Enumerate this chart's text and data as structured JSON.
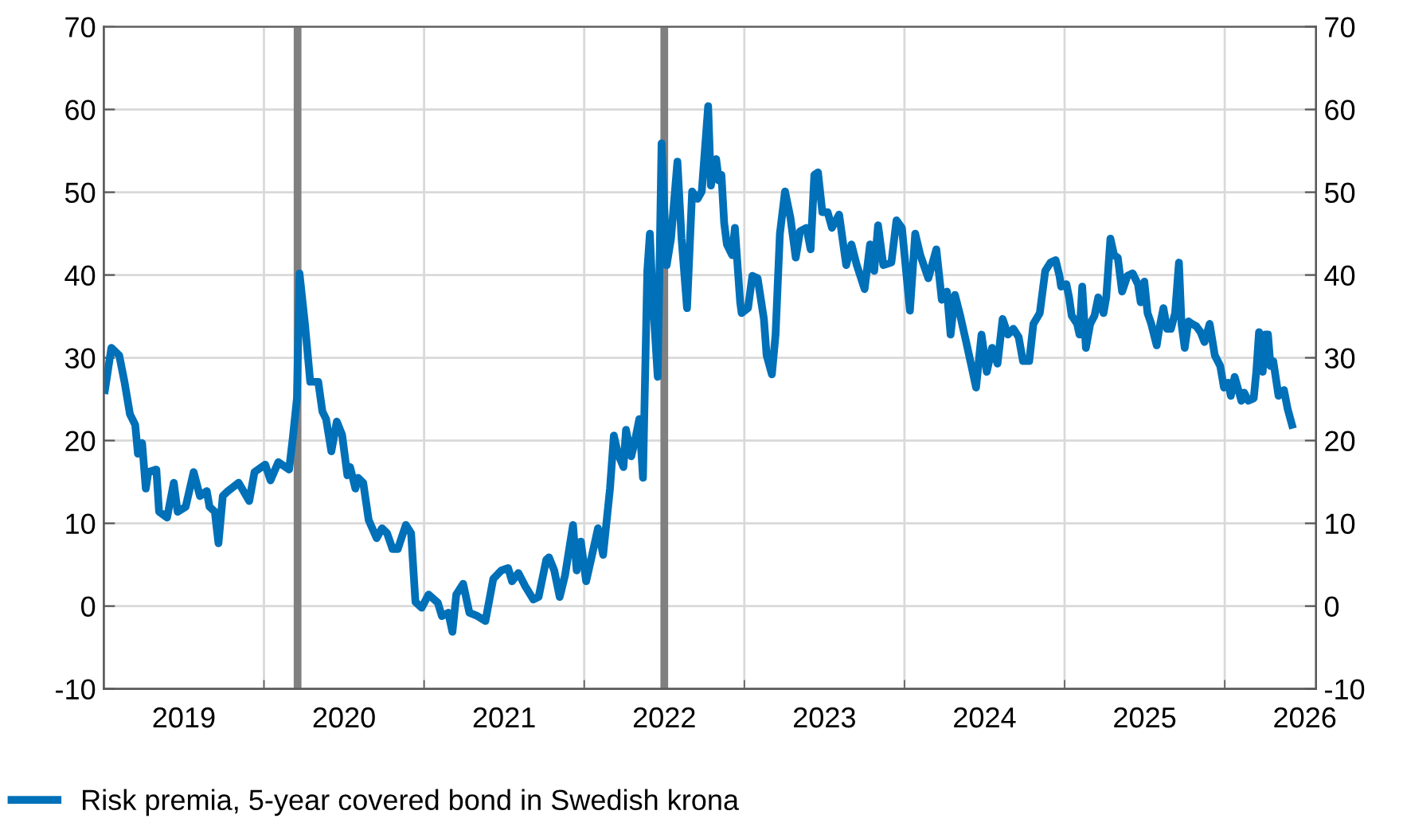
{
  "chart_data": {
    "type": "line",
    "x": [
      2019.007,
      2019.047,
      2019.096,
      2019.129,
      2019.163,
      2019.196,
      2019.213,
      2019.239,
      2019.262,
      2019.278,
      2019.328,
      2019.345,
      2019.395,
      2019.437,
      2019.461,
      2019.511,
      2019.561,
      2019.6,
      2019.643,
      2019.66,
      2019.693,
      2019.716,
      2019.743,
      2019.775,
      2019.842,
      2019.908,
      2019.941,
      2020.008,
      2020.041,
      2020.09,
      2020.157,
      2020.18,
      2020.206,
      2020.222,
      2020.256,
      2020.289,
      2020.339,
      2020.365,
      2020.388,
      2020.421,
      2020.455,
      2020.488,
      2020.521,
      2020.538,
      2020.571,
      2020.588,
      2020.62,
      2020.654,
      2020.704,
      2020.737,
      2020.769,
      2020.803,
      2020.836,
      2020.886,
      2020.919,
      2020.946,
      2020.985,
      2021.028,
      2021.086,
      2021.111,
      2021.151,
      2021.177,
      2021.201,
      2021.244,
      2021.283,
      2021.333,
      2021.383,
      2021.432,
      2021.482,
      2021.525,
      2021.549,
      2021.589,
      2021.632,
      2021.682,
      2021.715,
      2021.763,
      2021.78,
      2021.813,
      2021.847,
      2021.88,
      2021.93,
      2021.953,
      2021.979,
      2022.012,
      2022.046,
      2022.086,
      2022.118,
      2022.161,
      2022.185,
      2022.211,
      2022.245,
      2022.261,
      2022.294,
      2022.317,
      2022.344,
      2022.367,
      2022.394,
      2022.41,
      2022.426,
      2022.459,
      2022.483,
      2022.515,
      2022.542,
      2022.582,
      2022.608,
      2022.642,
      2022.674,
      2022.708,
      2022.734,
      2022.774,
      2022.791,
      2022.824,
      2022.841,
      2022.857,
      2022.874,
      2022.891,
      2022.924,
      2022.941,
      2022.974,
      2022.983,
      2023.023,
      2023.05,
      2023.083,
      2023.122,
      2023.139,
      2023.172,
      2023.195,
      2023.222,
      2023.254,
      2023.288,
      2023.321,
      2023.348,
      2023.388,
      2023.414,
      2023.437,
      2023.46,
      2023.487,
      2023.52,
      2023.547,
      2023.592,
      2023.636,
      2023.669,
      2023.702,
      2023.751,
      2023.785,
      2023.811,
      2023.835,
      2023.868,
      2023.918,
      2023.95,
      2023.984,
      2024.034,
      2024.067,
      2024.099,
      2024.149,
      2024.199,
      2024.233,
      2024.265,
      2024.288,
      2024.315,
      2024.348,
      2024.382,
      2024.415,
      2024.447,
      2024.481,
      2024.514,
      2024.547,
      2024.581,
      2024.613,
      2024.646,
      2024.68,
      2024.713,
      2024.74,
      2024.779,
      2024.805,
      2024.845,
      2024.879,
      2024.912,
      2024.944,
      2024.968,
      2024.978,
      2025.011,
      2025.028,
      2025.044,
      2025.078,
      2025.093,
      2025.11,
      2025.133,
      2025.16,
      2025.187,
      2025.21,
      2025.243,
      2025.26,
      2025.286,
      2025.309,
      2025.332,
      2025.359,
      2025.392,
      2025.425,
      2025.458,
      2025.475,
      2025.498,
      2025.518,
      2025.541,
      2025.575,
      2025.591,
      2025.617,
      2025.64,
      2025.664,
      2025.69,
      2025.714,
      2025.73,
      2025.75,
      2025.773,
      2025.796,
      2025.823,
      2025.849,
      2025.873,
      2025.906,
      2025.938,
      2025.972,
      2025.995,
      2026.022,
      2026.038,
      2026.062,
      2026.081,
      2026.104,
      2026.121,
      2026.147,
      2026.181,
      2026.197,
      2026.214,
      2026.237,
      2026.253,
      2026.27,
      2026.286,
      2026.303,
      2026.336,
      2026.37,
      2026.393,
      2026.42
    ],
    "series": [
      {
        "name": "Risk premia, 5-year covered bond in Swedish krona",
        "color": "#0070b8",
        "values": [
          26.1,
          31.2,
          30.3,
          27.1,
          23.2,
          21.9,
          18.4,
          19.7,
          14.2,
          16.2,
          16.5,
          11.4,
          10.7,
          14.9,
          11.4,
          12.0,
          16.2,
          13.3,
          13.9,
          12.0,
          11.4,
          7.6,
          13.3,
          13.9,
          14.9,
          12.7,
          16.2,
          17.1,
          15.2,
          17.4,
          16.5,
          20.3,
          25.1,
          40.2,
          34.1,
          27.1,
          27.1,
          23.5,
          22.6,
          18.7,
          22.3,
          20.7,
          15.8,
          16.8,
          14.2,
          15.5,
          14.9,
          10.4,
          8.2,
          9.4,
          8.8,
          6.9,
          6.9,
          9.8,
          8.8,
          0.5,
          -0.2,
          1.4,
          0.4,
          -1.2,
          -0.8,
          -3.1,
          1.4,
          2.7,
          -0.8,
          -1.2,
          -1.8,
          3.3,
          4.3,
          4.6,
          3.0,
          4.0,
          2.4,
          0.8,
          1.1,
          5.6,
          5.9,
          4.3,
          1.1,
          3.7,
          9.8,
          4.3,
          7.8,
          3.0,
          5.9,
          9.4,
          6.2,
          14.2,
          20.6,
          18.4,
          16.8,
          21.3,
          18.1,
          20.0,
          22.6,
          15.5,
          40.5,
          45.0,
          37.9,
          27.7,
          55.9,
          41.2,
          44.4,
          53.7,
          44.4,
          36.0,
          50.1,
          49.2,
          50.1,
          60.4,
          50.8,
          54.0,
          51.4,
          52.1,
          46.3,
          43.7,
          42.4,
          45.7,
          36.7,
          35.4,
          36.0,
          39.9,
          39.6,
          34.7,
          30.3,
          28.0,
          32.8,
          45.0,
          50.1,
          46.9,
          42.1,
          45.3,
          45.7,
          43.1,
          52.1,
          52.4,
          47.6,
          47.6,
          45.7,
          47.3,
          41.2,
          43.7,
          41.2,
          38.3,
          43.7,
          40.5,
          46.0,
          41.2,
          41.5,
          46.6,
          45.7,
          35.7,
          45.0,
          42.4,
          39.6,
          43.1,
          37.0,
          38.0,
          32.8,
          37.6,
          35.1,
          32.2,
          29.3,
          26.4,
          32.8,
          28.3,
          31.2,
          29.3,
          34.7,
          32.8,
          33.5,
          32.5,
          29.6,
          29.6,
          34.1,
          35.4,
          40.5,
          41.5,
          41.8,
          39.9,
          38.6,
          38.9,
          37.3,
          35.1,
          34.1,
          32.8,
          38.6,
          31.2,
          34.1,
          35.1,
          37.3,
          35.4,
          37.3,
          44.4,
          42.4,
          42.1,
          38.0,
          39.9,
          40.2,
          38.9,
          36.7,
          39.2,
          35.4,
          34.1,
          31.5,
          33.5,
          36.0,
          33.5,
          33.5,
          35.4,
          41.5,
          34.1,
          31.2,
          34.4,
          34.1,
          33.8,
          33.1,
          31.9,
          34.1,
          30.3,
          29.0,
          26.4,
          27.0,
          25.4,
          27.7,
          26.4,
          24.8,
          25.8,
          24.8,
          25.1,
          28.3,
          33.1,
          28.3,
          32.8,
          32.8,
          29.0,
          29.6,
          25.4,
          26.1,
          23.8,
          21.9
        ]
      }
    ],
    "xlim": [
      2019.0,
      2026.57
    ],
    "xticks": [
      {
        "value": 2019.5,
        "label": "2019"
      },
      {
        "value": 2020,
        "label": null
      },
      {
        "value": 2020.5,
        "label": "2020"
      },
      {
        "value": 2021,
        "label": null
      },
      {
        "value": 2021.5,
        "label": "2021"
      },
      {
        "value": 2022,
        "label": null
      },
      {
        "value": 2022.5,
        "label": "2022"
      },
      {
        "value": 2023,
        "label": null
      },
      {
        "value": 2023.5,
        "label": "2023"
      },
      {
        "value": 2024,
        "label": null
      },
      {
        "value": 2024.5,
        "label": "2024"
      },
      {
        "value": 2025,
        "label": null
      },
      {
        "value": 2025.5,
        "label": "2025"
      },
      {
        "value": 2026,
        "label": null
      },
      {
        "value": 2026.5,
        "label": "2026"
      }
    ],
    "ylim": [
      -10,
      70
    ],
    "yticks": [
      -10,
      0,
      10,
      20,
      30,
      40,
      50,
      60,
      70
    ],
    "y2lim": [
      -10,
      70
    ],
    "y2ticks": [
      -10,
      0,
      10,
      20,
      30,
      40,
      50,
      60,
      70
    ],
    "ref_lines": [
      {
        "axis": "x",
        "value": 2020.21,
        "color": "#808080"
      },
      {
        "axis": "x",
        "value": 2022.5,
        "color": "#808080"
      }
    ],
    "grid": true,
    "legend": "bottom left",
    "marker": "none",
    "line_style": "solid"
  }
}
